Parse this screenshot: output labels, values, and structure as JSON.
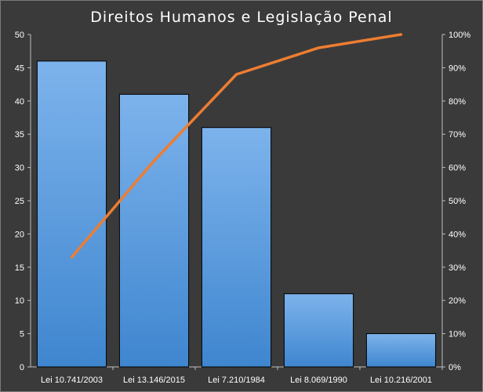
{
  "chart_data": {
    "type": "bar",
    "title": "Direitos Humanos e Legislação Penal",
    "categories": [
      "Lei 10.741/2003",
      "Lei 13.146/2015",
      "Lei 7.210/1984",
      "Lei 8.069/1990",
      "Lei 10.216/2001"
    ],
    "series": [
      {
        "type": "bar",
        "axis": "left",
        "values": [
          46,
          41,
          36,
          11,
          5
        ]
      },
      {
        "type": "line",
        "axis": "right",
        "values": [
          0.33,
          0.62,
          0.88,
          0.96,
          1.0
        ]
      }
    ],
    "y_left": {
      "range": [
        0,
        50
      ],
      "ticks": [
        "0",
        "5",
        "10",
        "15",
        "20",
        "25",
        "30",
        "35",
        "40",
        "45",
        "50"
      ]
    },
    "y_right": {
      "range": [
        0,
        1
      ],
      "ticks": [
        "0%",
        "10%",
        "20%",
        "30%",
        "40%",
        "50%",
        "60%",
        "70%",
        "80%",
        "90%",
        "100%"
      ]
    },
    "grid": false,
    "legend": "none",
    "colors": {
      "background": "#3a3a3a",
      "bar_top": "#7db3ec",
      "bar_bottom": "#3f86cf",
      "bar_border": "#000000",
      "line": "#ed7d31",
      "axis": "#bfbfbf",
      "text": "#ffffff"
    }
  }
}
